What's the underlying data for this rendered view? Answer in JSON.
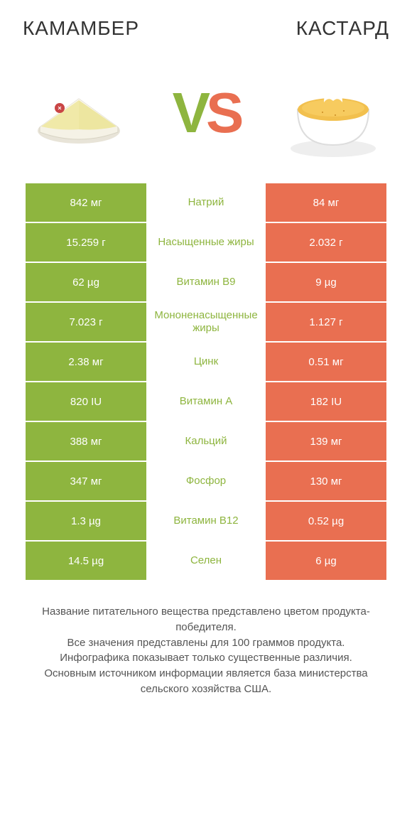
{
  "header": {
    "left_title": "КАМАМБЕР",
    "right_title": "КАСТАРД"
  },
  "vs": {
    "v": "V",
    "s": "S"
  },
  "colors": {
    "green": "#8eb53f",
    "orange": "#e96f51",
    "title": "#333333",
    "footer": "#555555",
    "white": "#ffffff"
  },
  "table": {
    "type": "comparison-table",
    "left_color": "#8eb53f",
    "right_color": "#e96f51",
    "rows": [
      {
        "left": "842 мг",
        "mid": "Натрий",
        "right": "84 мг",
        "winner": "left"
      },
      {
        "left": "15.259 г",
        "mid": "Насыщенные жиры",
        "right": "2.032 г",
        "winner": "left"
      },
      {
        "left": "62 µg",
        "mid": "Витамин B9",
        "right": "9 µg",
        "winner": "left"
      },
      {
        "left": "7.023 г",
        "mid": "Мононенасыщенные жиры",
        "right": "1.127 г",
        "winner": "left"
      },
      {
        "left": "2.38 мг",
        "mid": "Цинк",
        "right": "0.51 мг",
        "winner": "left"
      },
      {
        "left": "820 IU",
        "mid": "Витамин A",
        "right": "182 IU",
        "winner": "left"
      },
      {
        "left": "388 мг",
        "mid": "Кальций",
        "right": "139 мг",
        "winner": "left"
      },
      {
        "left": "347 мг",
        "mid": "Фосфор",
        "right": "130 мг",
        "winner": "left"
      },
      {
        "left": "1.3 µg",
        "mid": "Витамин B12",
        "right": "0.52 µg",
        "winner": "left"
      },
      {
        "left": "14.5 µg",
        "mid": "Селен",
        "right": "6 µg",
        "winner": "left"
      }
    ]
  },
  "footer": {
    "line1": "Название питательного вещества представлено цветом продукта-победителя.",
    "line2": "Все значения представлены для 100 граммов продукта.",
    "line3": "Инфографика показывает только существенные различия.",
    "line4": "Основным источником информации является база министерства сельского хозяйства США."
  }
}
